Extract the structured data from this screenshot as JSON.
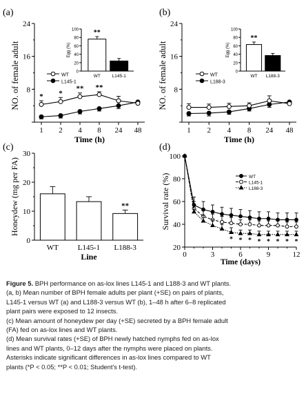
{
  "caption": {
    "label": "Figure 5.",
    "lines": [
      "BPH performance on as-lox lines L145-1 and L188-3 and WT plants.",
      "(a, b) Mean number of BPH female adults per plant (+SE) on pairs of plants,",
      "L145-1 versus WT (a) and L188-3 versus WT (b), 1–48 h after 6–8 replicated",
      "plant pairs were exposed to 12 insects.",
      "(c) Mean amount of honeydew per day (+SE) secreted by a BPH female adult",
      "(FA) fed on as-lox lines and WT plants.",
      "(d) Mean survival rates (+SE) of BPH newly hatched nymphs fed on as-lox",
      "lines and WT plants, 0–12 days after the nymphs were placed on plants.",
      "Asterisks indicate significant differences in as-lox lines compared to WT",
      "plants (*P < 0.05; **P < 0.01; Student's t-test)."
    ]
  },
  "chart_data": [
    {
      "panel": "(a)",
      "type": "line",
      "x": [
        "1",
        "2",
        "4",
        "8",
        "24",
        "48"
      ],
      "xlabel": "Time (h)",
      "ylabel": "NO. of female adult",
      "ylim": [
        0,
        24
      ],
      "yticks": [
        0,
        8,
        16,
        24
      ],
      "series": [
        {
          "name": "WT",
          "values": [
            4.3,
            5.0,
            6.2,
            6.7,
            5.2,
            4.6
          ],
          "err": [
            0.9,
            1.0,
            0.9,
            0.7,
            1.1,
            0.5
          ],
          "marker": "open-circle"
        },
        {
          "name": "L145-1",
          "values": [
            1.3,
            1.6,
            2.6,
            3.3,
            4.0,
            4.9
          ],
          "err": [
            0.5,
            0.6,
            0.6,
            0.6,
            0.7,
            0.6
          ],
          "marker": "filled-circle"
        }
      ],
      "significance": [
        "*",
        "*",
        "**",
        "**",
        "",
        ""
      ],
      "inset": {
        "type": "bar",
        "ylabel": "Egg (%)",
        "ylim": [
          0,
          100
        ],
        "yticks": [
          0,
          20,
          40,
          60,
          80,
          100
        ],
        "categories": [
          "WT",
          "L145-1"
        ],
        "values": [
          76,
          24
        ],
        "err": [
          6,
          6
        ],
        "fills": [
          "#ffffff",
          "#000000"
        ],
        "significance": [
          "**",
          ""
        ]
      }
    },
    {
      "panel": "(b)",
      "type": "line",
      "x": [
        "1",
        "2",
        "4",
        "8",
        "24",
        "48"
      ],
      "xlabel": "Time (h)",
      "ylabel": "NO. of female adult",
      "ylim": [
        0,
        24
      ],
      "yticks": [
        0,
        8,
        16,
        24
      ],
      "series": [
        {
          "name": "WT",
          "values": [
            3.6,
            3.6,
            3.8,
            4.0,
            5.2,
            4.5
          ],
          "err": [
            0.9,
            0.8,
            0.8,
            0.7,
            1.2,
            0.6
          ],
          "marker": "open-circle"
        },
        {
          "name": "L188-3",
          "values": [
            2.1,
            2.2,
            2.5,
            3.3,
            4.3,
            4.9
          ],
          "err": [
            0.6,
            0.7,
            0.6,
            0.6,
            0.7,
            0.5
          ],
          "marker": "filled-circle"
        }
      ],
      "inset": {
        "type": "bar",
        "ylabel": "Egg (%)",
        "ylim": [
          0,
          100
        ],
        "yticks": [
          0,
          20,
          40,
          60,
          80,
          100
        ],
        "categories": [
          "WT",
          "L188-3"
        ],
        "values": [
          63,
          37
        ],
        "err": [
          6,
          5
        ],
        "fills": [
          "#ffffff",
          "#000000"
        ],
        "significance": [
          "**",
          ""
        ]
      }
    },
    {
      "panel": "(c)",
      "type": "bar",
      "categories": [
        "WT",
        "L145-1",
        "L188-3"
      ],
      "values": [
        16.0,
        13.3,
        9.2
      ],
      "err": [
        2.5,
        1.7,
        1.2
      ],
      "significance": [
        "",
        "",
        "**"
      ],
      "xlabel": "Line",
      "ylabel": "Honeydew (mg per FA)",
      "ylim": [
        0,
        30
      ],
      "yticks": [
        0,
        10,
        20,
        30
      ]
    },
    {
      "panel": "(d)",
      "type": "line",
      "x": [
        0,
        1,
        2,
        3,
        4,
        5,
        6,
        7,
        8,
        9,
        10,
        11,
        12
      ],
      "xticks": [
        0,
        3,
        6,
        9,
        12
      ],
      "xlabel": "Time (days)",
      "ylabel": "Survival rate (%)",
      "ylim": [
        20,
        100
      ],
      "yticks": [
        20,
        40,
        60,
        80,
        100
      ],
      "series": [
        {
          "name": "WT",
          "values": [
            100,
            57,
            53,
            51,
            49,
            48,
            47,
            46,
            45,
            45,
            44,
            44,
            44
          ],
          "err": [
            0,
            7,
            7,
            6,
            6,
            6,
            6,
            6,
            6,
            6,
            6,
            6,
            6
          ],
          "marker": "filled-circle",
          "dash": "solid"
        },
        {
          "name": "L145-1",
          "values": [
            100,
            54,
            47,
            44,
            42,
            41,
            40,
            40,
            39,
            39,
            39,
            38,
            38
          ],
          "err": [
            0,
            6,
            5,
            5,
            5,
            5,
            4,
            4,
            4,
            4,
            4,
            4,
            4
          ],
          "marker": "open-circle",
          "dash": "dashed"
        },
        {
          "name": "L188-3",
          "values": [
            100,
            51,
            43,
            39,
            36,
            33,
            32,
            32,
            31,
            31,
            31,
            31,
            31
          ],
          "err": [
            0,
            6,
            5,
            5,
            4,
            4,
            3,
            3,
            3,
            3,
            3,
            3,
            3
          ],
          "marker": "filled-triangle",
          "dash": "dotted"
        }
      ],
      "significance": [
        "",
        "",
        "",
        "",
        "",
        "*",
        "*",
        "*",
        "*",
        "*",
        "*",
        "*",
        "*"
      ]
    }
  ]
}
